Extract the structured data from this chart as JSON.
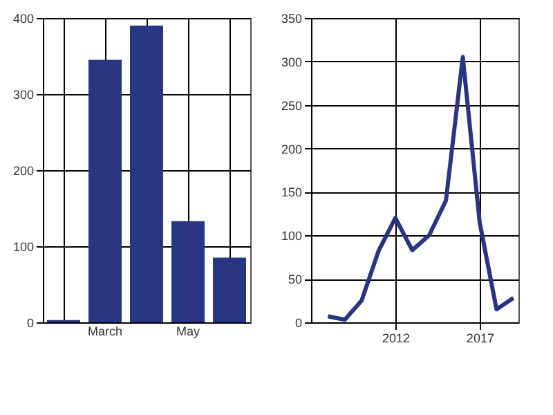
{
  "chart_data": [
    {
      "type": "bar",
      "categories": [
        null,
        "March",
        null,
        "May",
        null
      ],
      "values": [
        3,
        345,
        390,
        133,
        85
      ],
      "color": "#283583",
      "ylim": [
        0,
        400
      ],
      "yticks": [
        0,
        100,
        200,
        300,
        400
      ],
      "grid": true
    },
    {
      "type": "line",
      "x": [
        2008,
        2009,
        2010,
        2011,
        2012,
        2013,
        2014,
        2015,
        2016,
        2017,
        2018,
        2019
      ],
      "values": [
        7,
        3,
        25,
        82,
        120,
        83,
        100,
        140,
        305,
        115,
        15,
        28
      ],
      "color": "#283583",
      "xlim": [
        2007,
        2019.3
      ],
      "xticks": [
        2012,
        2017
      ],
      "ylim": [
        0,
        350
      ],
      "yticks": [
        0,
        50,
        100,
        150,
        200,
        250,
        300,
        350
      ],
      "grid": true,
      "line_style": "solid",
      "marker": "none"
    }
  ]
}
